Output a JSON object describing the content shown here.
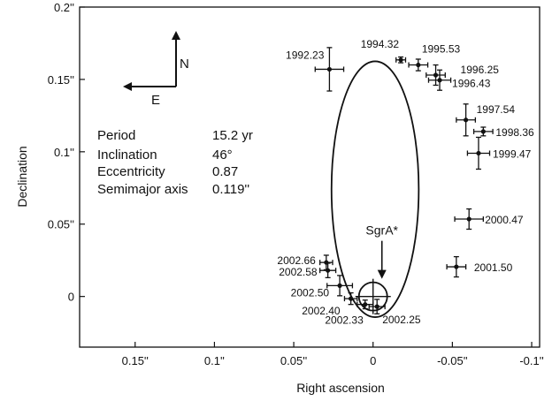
{
  "chart_data": {
    "type": "scatter",
    "xlabel": "Right ascension",
    "ylabel": "Declination",
    "x_reversed": true,
    "xlim": [
      0.185,
      -0.105
    ],
    "ylim": [
      -0.035,
      0.2
    ],
    "grid": false,
    "x_ticks": [
      {
        "value": 0.15,
        "label": "0.15''"
      },
      {
        "value": 0.1,
        "label": "0.1''"
      },
      {
        "value": 0.05,
        "label": "0.05''"
      },
      {
        "value": 0,
        "label": "0"
      },
      {
        "value": -0.05,
        "label": "-0.05''"
      },
      {
        "value": -0.1,
        "label": "-0.1''"
      }
    ],
    "y_ticks": [
      {
        "value": 0.2,
        "label": "0.2''"
      },
      {
        "value": 0.15,
        "label": "0.15''"
      },
      {
        "value": 0.1,
        "label": "0.1''"
      },
      {
        "value": 0.05,
        "label": "0.05''"
      },
      {
        "value": 0,
        "label": "0"
      }
    ],
    "points": [
      {
        "epoch": "1992.23",
        "x": 0.0275,
        "y": 0.157,
        "xerr": 0.009,
        "yerr": 0.015
      },
      {
        "epoch": "1994.32",
        "x": -0.0175,
        "y": 0.1635,
        "xerr": 0.003,
        "yerr": 0.002
      },
      {
        "epoch": "1995.53",
        "x": -0.0285,
        "y": 0.16,
        "xerr": 0.006,
        "yerr": 0.004
      },
      {
        "epoch": "1996.25",
        "x": -0.0395,
        "y": 0.153,
        "xerr": 0.006,
        "yerr": 0.007
      },
      {
        "epoch": "1996.43",
        "x": -0.042,
        "y": 0.1495,
        "xerr": 0.007,
        "yerr": 0.007
      },
      {
        "epoch": "1997.54",
        "x": -0.0585,
        "y": 0.122,
        "xerr": 0.006,
        "yerr": 0.011
      },
      {
        "epoch": "1998.36",
        "x": -0.0695,
        "y": 0.114,
        "xerr": 0.006,
        "yerr": 0.003
      },
      {
        "epoch": "1999.47",
        "x": -0.0665,
        "y": 0.099,
        "xerr": 0.007,
        "yerr": 0.011
      },
      {
        "epoch": "2000.47",
        "x": -0.0605,
        "y": 0.0535,
        "xerr": 0.009,
        "yerr": 0.007
      },
      {
        "epoch": "2001.50",
        "x": -0.0525,
        "y": 0.0205,
        "xerr": 0.006,
        "yerr": 0.007
      },
      {
        "epoch": "2002.66",
        "x": 0.0295,
        "y": 0.0235,
        "xerr": 0.004,
        "yerr": 0.005
      },
      {
        "epoch": "2002.58",
        "x": 0.0285,
        "y": 0.018,
        "xerr": 0.005,
        "yerr": 0.005
      },
      {
        "epoch": "2002.50",
        "x": 0.021,
        "y": 0.0075,
        "xerr": 0.008,
        "yerr": 0.007
      },
      {
        "epoch": "2002.40",
        "x": 0.014,
        "y": -0.0015,
        "xerr": 0.004,
        "yerr": 0.004
      },
      {
        "epoch": "2002.33",
        "x": 0.005,
        "y": -0.0055,
        "xerr": 0.005,
        "yerr": 0.003
      },
      {
        "epoch": "2002.25",
        "x": -0.0025,
        "y": -0.007,
        "xerr": 0.005,
        "yerr": 0.005
      }
    ],
    "orbit": {
      "period": 15.2,
      "eccentricity": 0.87,
      "inclination": 46,
      "ra_bounds": [
        0.0262,
        -0.0288
      ],
      "dec_bounds": [
        -0.0143,
        0.1625
      ]
    },
    "sgr_a": {
      "label": "SgrA*",
      "x": 0,
      "y": 0
    }
  },
  "parameters": [
    {
      "name": "Period",
      "value": "15.2 yr"
    },
    {
      "name": "Inclination",
      "value": "46°"
    },
    {
      "name": "Eccentricity",
      "value": "0.87"
    },
    {
      "name": "Semimajor axis",
      "value": "0.119''"
    }
  ],
  "compass": {
    "north": "N",
    "east": "E"
  }
}
